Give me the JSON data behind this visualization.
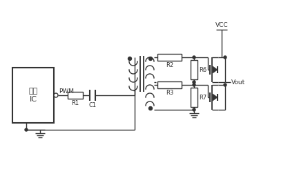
{
  "bg_color": "#ffffff",
  "line_color": "#333333",
  "line_width": 1.0,
  "labels": {
    "ic_box": "电源\nIC",
    "pwm": "PWM",
    "r1": "R1",
    "c1": "C1",
    "r2": "R2",
    "r3": "R3",
    "r6": "R6",
    "r7": "R7",
    "vcc": "VCC",
    "vout": "Vout"
  },
  "fs": 7,
  "fs_small": 6
}
